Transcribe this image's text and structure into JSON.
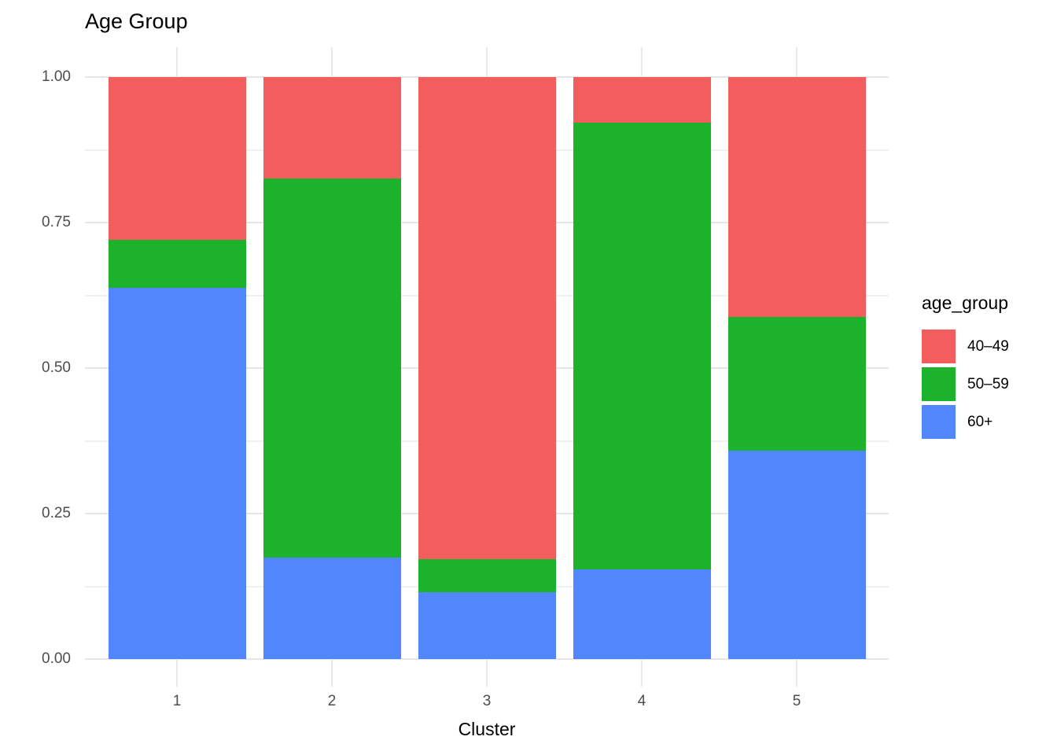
{
  "title": "Age Group",
  "x_axis": {
    "label": "Cluster",
    "ticks": [
      "1",
      "2",
      "3",
      "4",
      "5"
    ]
  },
  "y_axis": {
    "ticks": [
      {
        "value": 1.0,
        "label": "1.00"
      },
      {
        "value": 0.75,
        "label": "0.75"
      },
      {
        "value": 0.5,
        "label": "0.50"
      },
      {
        "value": 0.25,
        "label": "0.25"
      },
      {
        "value": 0.0,
        "label": "0.00"
      }
    ],
    "minor_ticks": [
      0.875,
      0.625,
      0.375,
      0.125
    ]
  },
  "legend": {
    "title": "age_group",
    "position": "right",
    "entries": [
      {
        "label": "40–49",
        "color": "#f25d5d"
      },
      {
        "label": "50–59",
        "color": "#1cb22b"
      },
      {
        "label": "60+",
        "color": "#5286fc"
      }
    ]
  },
  "chart_data": {
    "type": "bar",
    "subtype": "stacked_proportion",
    "title": "Age Group",
    "xlabel": "Cluster",
    "ylabel": "",
    "ylim": [
      0,
      1
    ],
    "grid": true,
    "legend_position": "right",
    "categories": [
      "1",
      "2",
      "3",
      "4",
      "5"
    ],
    "stack_order_bottom_to_top": [
      "60+",
      "50–59",
      "40–49"
    ],
    "series": [
      {
        "name": "40–49",
        "color": "#f25d5d",
        "values": [
          0.28,
          0.174,
          0.828,
          0.078,
          0.412
        ]
      },
      {
        "name": "50–59",
        "color": "#1cb22b",
        "values": [
          0.082,
          0.652,
          0.057,
          0.768,
          0.23
        ]
      },
      {
        "name": "60+",
        "color": "#5286fc",
        "values": [
          0.638,
          0.174,
          0.115,
          0.154,
          0.358
        ]
      }
    ],
    "cumulative_tops": {
      "60+": [
        0.638,
        0.174,
        0.115,
        0.154,
        0.358
      ],
      "50–59": [
        0.72,
        0.826,
        0.172,
        0.922,
        0.588
      ],
      "40–49": [
        1.0,
        1.0,
        1.0,
        1.0,
        1.0
      ]
    }
  },
  "style": {
    "background": "#ffffff",
    "grid_color": "#e8e8e8",
    "tick_label_color": "#4d4d4d",
    "title_color": "#000000"
  }
}
